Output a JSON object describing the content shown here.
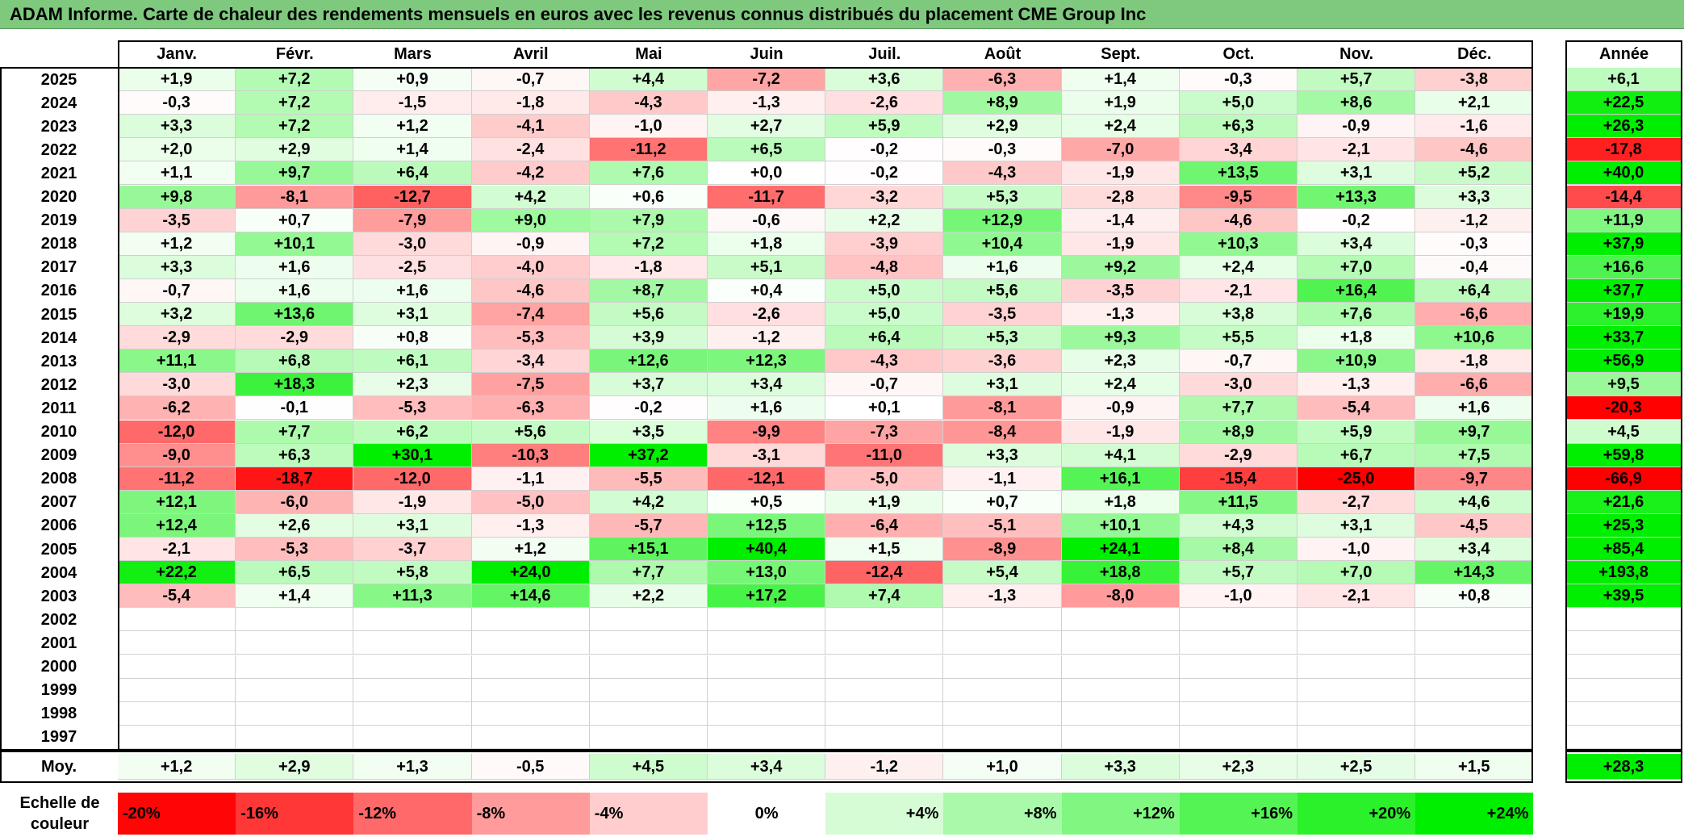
{
  "title": "ADAM Informe. Carte de chaleur des rendements mensuels en euros avec les revenus connus distribués du placement CME Group Inc",
  "colors": {
    "title_bg": "#7fc97f",
    "neg_max": "#ff0000",
    "pos_max": "#00ee00",
    "neutral": "#ffffff"
  },
  "chart_data": {
    "type": "heatmap",
    "columns": [
      "Janv.",
      "Févr.",
      "Mars",
      "Avril",
      "Mai",
      "Juin",
      "Juil.",
      "Août",
      "Sept.",
      "Oct.",
      "Nov.",
      "Déc."
    ],
    "year_column_label": "Année",
    "average_label": "Moy.",
    "rows": [
      {
        "year": "2025",
        "values": [
          "+1,9",
          "+7,2",
          "+0,9",
          "-0,7",
          "+4,4",
          "-7,2",
          "+3,6",
          "-6,3",
          "+1,4",
          "-0,3",
          "+5,7",
          "-3,8"
        ],
        "year_total": "+6,1"
      },
      {
        "year": "2024",
        "values": [
          "-0,3",
          "+7,2",
          "-1,5",
          "-1,8",
          "-4,3",
          "-1,3",
          "-2,6",
          "+8,9",
          "+1,9",
          "+5,0",
          "+8,6",
          "+2,1"
        ],
        "year_total": "+22,5"
      },
      {
        "year": "2023",
        "values": [
          "+3,3",
          "+7,2",
          "+1,2",
          "-4,1",
          "-1,0",
          "+2,7",
          "+5,9",
          "+2,9",
          "+2,4",
          "+6,3",
          "-0,9",
          "-1,6"
        ],
        "year_total": "+26,3"
      },
      {
        "year": "2022",
        "values": [
          "+2,0",
          "+2,9",
          "+1,4",
          "-2,4",
          "-11,2",
          "+6,5",
          "-0,2",
          "-0,3",
          "-7,0",
          "-3,4",
          "-2,1",
          "-4,6"
        ],
        "year_total": "-17,8"
      },
      {
        "year": "2021",
        "values": [
          "+1,1",
          "+9,7",
          "+6,4",
          "-4,2",
          "+7,6",
          "+0,0",
          "-0,2",
          "-4,3",
          "-1,9",
          "+13,5",
          "+3,1",
          "+5,2"
        ],
        "year_total": "+40,0"
      },
      {
        "year": "2020",
        "values": [
          "+9,8",
          "-8,1",
          "-12,7",
          "+4,2",
          "+0,6",
          "-11,7",
          "-3,2",
          "+5,3",
          "-2,8",
          "-9,5",
          "+13,3",
          "+3,3"
        ],
        "year_total": "-14,4"
      },
      {
        "year": "2019",
        "values": [
          "-3,5",
          "+0,7",
          "-7,9",
          "+9,0",
          "+7,9",
          "-0,6",
          "+2,2",
          "+12,9",
          "-1,4",
          "-4,6",
          "-0,2",
          "-1,2"
        ],
        "year_total": "+11,9"
      },
      {
        "year": "2018",
        "values": [
          "+1,2",
          "+10,1",
          "-3,0",
          "-0,9",
          "+7,2",
          "+1,8",
          "-3,9",
          "+10,4",
          "-1,9",
          "+10,3",
          "+3,4",
          "-0,3"
        ],
        "year_total": "+37,9"
      },
      {
        "year": "2017",
        "values": [
          "+3,3",
          "+1,6",
          "-2,5",
          "-4,0",
          "-1,8",
          "+5,1",
          "-4,8",
          "+1,6",
          "+9,2",
          "+2,4",
          "+7,0",
          "-0,4"
        ],
        "year_total": "+16,6"
      },
      {
        "year": "2016",
        "values": [
          "-0,7",
          "+1,6",
          "+1,6",
          "-4,6",
          "+8,7",
          "+0,4",
          "+5,0",
          "+5,6",
          "-3,5",
          "-2,1",
          "+16,4",
          "+6,4"
        ],
        "year_total": "+37,7"
      },
      {
        "year": "2015",
        "values": [
          "+3,2",
          "+13,6",
          "+3,1",
          "-7,4",
          "+5,6",
          "-2,6",
          "+5,0",
          "-3,5",
          "-1,3",
          "+3,8",
          "+7,6",
          "-6,6"
        ],
        "year_total": "+19,9"
      },
      {
        "year": "2014",
        "values": [
          "-2,9",
          "-2,9",
          "+0,8",
          "-5,3",
          "+3,9",
          "-1,2",
          "+6,4",
          "+5,3",
          "+9,3",
          "+5,5",
          "+1,8",
          "+10,6"
        ],
        "year_total": "+33,7"
      },
      {
        "year": "2013",
        "values": [
          "+11,1",
          "+6,8",
          "+6,1",
          "-3,4",
          "+12,6",
          "+12,3",
          "-4,3",
          "-3,6",
          "+2,3",
          "-0,7",
          "+10,9",
          "-1,8"
        ],
        "year_total": "+56,9"
      },
      {
        "year": "2012",
        "values": [
          "-3,0",
          "+18,3",
          "+2,3",
          "-7,5",
          "+3,7",
          "+3,4",
          "-0,7",
          "+3,1",
          "+2,4",
          "-3,0",
          "-1,3",
          "-6,6"
        ],
        "year_total": "+9,5"
      },
      {
        "year": "2011",
        "values": [
          "-6,2",
          "-0,1",
          "-5,3",
          "-6,3",
          "-0,2",
          "+1,6",
          "+0,1",
          "-8,1",
          "-0,9",
          "+7,7",
          "-5,4",
          "+1,6"
        ],
        "year_total": "-20,3"
      },
      {
        "year": "2010",
        "values": [
          "-12,0",
          "+7,7",
          "+6,2",
          "+5,6",
          "+3,5",
          "-9,9",
          "-7,3",
          "-8,4",
          "-1,9",
          "+8,9",
          "+5,9",
          "+9,7"
        ],
        "year_total": "+4,5"
      },
      {
        "year": "2009",
        "values": [
          "-9,0",
          "+6,3",
          "+30,1",
          "-10,3",
          "+37,2",
          "-3,1",
          "-11,0",
          "+3,3",
          "+4,1",
          "-2,9",
          "+6,7",
          "+7,5"
        ],
        "year_total": "+59,8"
      },
      {
        "year": "2008",
        "values": [
          "-11,2",
          "-18,7",
          "-12,0",
          "-1,1",
          "-5,5",
          "-12,1",
          "-5,0",
          "-1,1",
          "+16,1",
          "-15,4",
          "-25,0",
          "-9,7"
        ],
        "year_total": "-66,9"
      },
      {
        "year": "2007",
        "values": [
          "+12,1",
          "-6,0",
          "-1,9",
          "-5,0",
          "+4,2",
          "+0,5",
          "+1,9",
          "+0,7",
          "+1,8",
          "+11,5",
          "-2,7",
          "+4,6"
        ],
        "year_total": "+21,6"
      },
      {
        "year": "2006",
        "values": [
          "+12,4",
          "+2,6",
          "+3,1",
          "-1,3",
          "-5,7",
          "+12,5",
          "-6,4",
          "-5,1",
          "+10,1",
          "+4,3",
          "+3,1",
          "-4,5"
        ],
        "year_total": "+25,3"
      },
      {
        "year": "2005",
        "values": [
          "-2,1",
          "-5,3",
          "-3,7",
          "+1,2",
          "+15,1",
          "+40,4",
          "+1,5",
          "-8,9",
          "+24,1",
          "+8,4",
          "-1,0",
          "+3,4"
        ],
        "year_total": "+85,4"
      },
      {
        "year": "2004",
        "values": [
          "+22,2",
          "+6,5",
          "+5,8",
          "+24,0",
          "+7,7",
          "+13,0",
          "-12,4",
          "+5,4",
          "+18,8",
          "+5,7",
          "+7,0",
          "+14,3"
        ],
        "year_total": "+193,8"
      },
      {
        "year": "2003",
        "values": [
          "-5,4",
          "+1,4",
          "+11,3",
          "+14,6",
          "+2,2",
          "+17,2",
          "+7,4",
          "-1,3",
          "-8,0",
          "-1,0",
          "-2,1",
          "+0,8"
        ],
        "year_total": "+39,5"
      },
      {
        "year": "2002",
        "values": [
          "",
          "",
          "",
          "",
          "",
          "",
          "",
          "",
          "",
          "",
          "",
          ""
        ],
        "year_total": ""
      },
      {
        "year": "2001",
        "values": [
          "",
          "",
          "",
          "",
          "",
          "",
          "",
          "",
          "",
          "",
          "",
          ""
        ],
        "year_total": ""
      },
      {
        "year": "2000",
        "values": [
          "",
          "",
          "",
          "",
          "",
          "",
          "",
          "",
          "",
          "",
          "",
          ""
        ],
        "year_total": ""
      },
      {
        "year": "1999",
        "values": [
          "",
          "",
          "",
          "",
          "",
          "",
          "",
          "",
          "",
          "",
          "",
          ""
        ],
        "year_total": ""
      },
      {
        "year": "1998",
        "values": [
          "",
          "",
          "",
          "",
          "",
          "",
          "",
          "",
          "",
          "",
          "",
          ""
        ],
        "year_total": ""
      },
      {
        "year": "1997",
        "values": [
          "",
          "",
          "",
          "",
          "",
          "",
          "",
          "",
          "",
          "",
          "",
          ""
        ],
        "year_total": ""
      }
    ],
    "averages": [
      "+1,2",
      "+2,9",
      "+1,3",
      "-0,5",
      "+4,5",
      "+3,4",
      "-1,2",
      "+1,0",
      "+3,3",
      "+2,3",
      "+2,5",
      "+1,5"
    ],
    "average_total": "+28,3",
    "scale_label": "Echelle de couleur",
    "scale": [
      "-20%",
      "-16%",
      "-12%",
      "-8%",
      "-4%",
      "0%",
      "+4%",
      "+8%",
      "+12%",
      "+16%",
      "+20%",
      "+24%"
    ]
  }
}
